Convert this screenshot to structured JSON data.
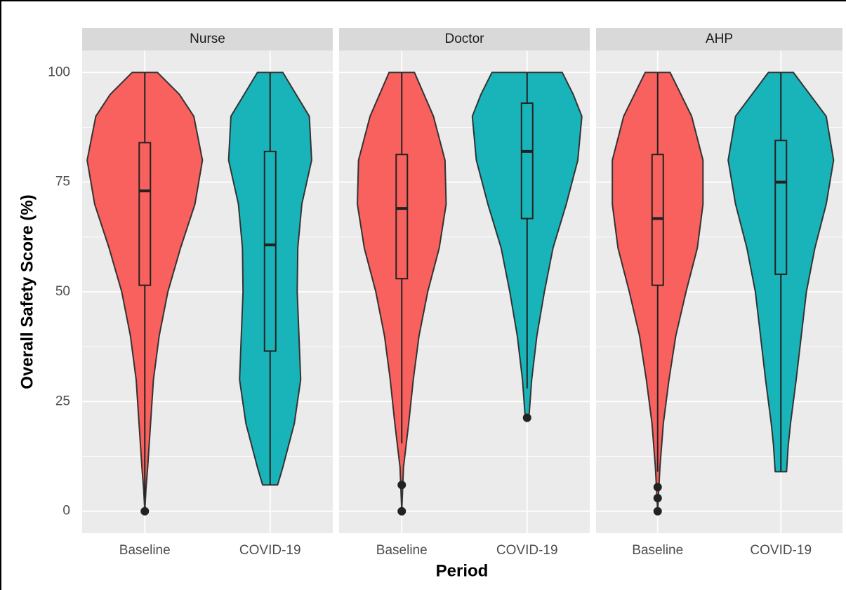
{
  "chart_data": {
    "type": "violin",
    "y_label": "Overall Safety Score (%)",
    "x_label": "Period",
    "categories": [
      "Baseline",
      "COVID-19"
    ],
    "colors": [
      "#f8615d",
      "#19b4b9"
    ],
    "ylim": [
      -5,
      105
    ],
    "yticks": [
      0,
      25,
      50,
      75,
      100
    ],
    "grid": true,
    "panels": [
      {
        "title": "Nurse",
        "groups": [
          {
            "density": {
              "y": [
                0,
                5,
                10,
                20,
                30,
                40,
                50,
                60,
                70,
                80,
                90,
                95,
                100
              ],
              "width": [
                0,
                0.02,
                0.05,
                0.1,
                0.15,
                0.25,
                0.4,
                0.62,
                0.87,
                1.0,
                0.85,
                0.6,
                0.22
              ]
            },
            "whisker_low": 3,
            "q1": 51.5,
            "median": 73,
            "q3": 84,
            "whisker_high": 100,
            "outliers": [
              0
            ]
          },
          {
            "density": {
              "y": [
                6,
                10,
                20,
                30,
                40,
                50,
                60,
                70,
                80,
                90,
                100
              ],
              "width": [
                0.13,
                0.22,
                0.42,
                0.53,
                0.5,
                0.47,
                0.48,
                0.55,
                0.72,
                0.68,
                0.22
              ]
            },
            "whisker_low": 6,
            "q1": 36.5,
            "median": 60.7,
            "q3": 82,
            "whisker_high": 100,
            "outliers": []
          }
        ]
      },
      {
        "title": "Doctor",
        "groups": [
          {
            "density": {
              "y": [
                0,
                10,
                20,
                30,
                40,
                50,
                60,
                70,
                80,
                90,
                100
              ],
              "width": [
                0,
                0.03,
                0.12,
                0.2,
                0.3,
                0.45,
                0.65,
                0.77,
                0.75,
                0.55,
                0.22
              ]
            },
            "whisker_low": 15.5,
            "q1": 53,
            "median": 69,
            "q3": 81.3,
            "whisker_high": 100,
            "outliers": [
              6,
              0
            ]
          },
          {
            "density": {
              "y": [
                21,
                30,
                40,
                50,
                60,
                70,
                80,
                90,
                95,
                100
              ],
              "width": [
                0.03,
                0.08,
                0.17,
                0.3,
                0.45,
                0.68,
                0.88,
                0.95,
                0.8,
                0.61
              ]
            },
            "whisker_low": 28,
            "q1": 66.7,
            "median": 82,
            "q3": 93,
            "whisker_high": 100,
            "outliers": [
              21.3
            ]
          }
        ]
      },
      {
        "title": "AHP",
        "groups": [
          {
            "density": {
              "y": [
                0,
                10,
                20,
                30,
                40,
                50,
                60,
                70,
                80,
                90,
                100
              ],
              "width": [
                0,
                0.04,
                0.1,
                0.2,
                0.32,
                0.5,
                0.7,
                0.8,
                0.8,
                0.6,
                0.22
              ]
            },
            "whisker_low": 9,
            "q1": 51.5,
            "median": 66.7,
            "q3": 81.3,
            "whisker_high": 100,
            "outliers": [
              5.5,
              3,
              0
            ]
          },
          {
            "density": {
              "y": [
                9,
                15,
                20,
                30,
                40,
                50,
                60,
                70,
                80,
                90,
                100
              ],
              "width": [
                0.1,
                0.13,
                0.17,
                0.27,
                0.36,
                0.45,
                0.6,
                0.8,
                0.93,
                0.8,
                0.22
              ]
            },
            "whisker_low": 9,
            "q1": 54,
            "median": 75,
            "q3": 84.5,
            "whisker_high": 100,
            "outliers": []
          }
        ]
      }
    ]
  }
}
